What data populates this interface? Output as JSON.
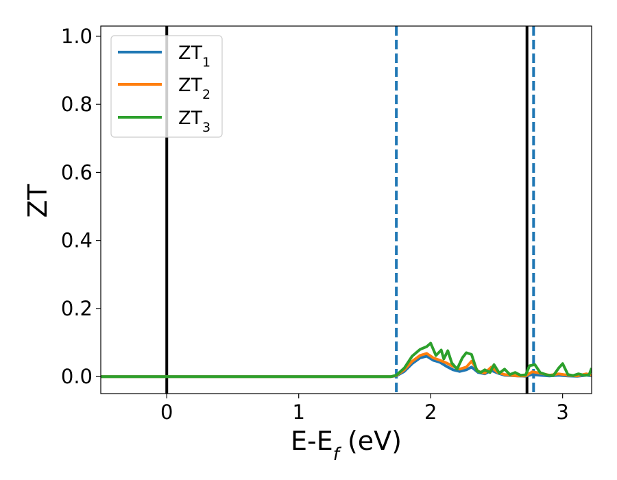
{
  "chart_data": {
    "type": "line",
    "xlabel_main": "E-E",
    "xlabel_sub": "f",
    "xlabel_unit": " (eV)",
    "ylabel": "ZT",
    "xlim": [
      -0.5,
      3.22
    ],
    "ylim": [
      -0.05,
      1.03
    ],
    "xticks": [
      0,
      1,
      2,
      3
    ],
    "xtick_labels": [
      "0",
      "1",
      "2",
      "3"
    ],
    "yticks": [
      0.0,
      0.2,
      0.4,
      0.6,
      0.8,
      1.0
    ],
    "ytick_labels": [
      "0.0",
      "0.2",
      "0.4",
      "0.6",
      "0.8",
      "1.0"
    ],
    "grid": false,
    "legend_position": "top-left",
    "series": [
      {
        "name": "ZT",
        "sub": "1",
        "color": "#1f77b4",
        "x": [
          -0.5,
          1.7,
          1.74,
          1.8,
          1.86,
          1.92,
          1.97,
          2.02,
          2.07,
          2.12,
          2.17,
          2.22,
          2.27,
          2.31,
          2.36,
          2.41,
          2.46,
          2.51,
          2.56,
          2.61,
          2.66,
          2.72,
          2.77,
          2.83,
          2.9,
          2.97,
          3.04,
          3.11,
          3.18,
          3.22
        ],
        "y": [
          0.0,
          0.0,
          0.002,
          0.015,
          0.038,
          0.055,
          0.06,
          0.048,
          0.042,
          0.03,
          0.02,
          0.015,
          0.02,
          0.028,
          0.012,
          0.008,
          0.018,
          0.01,
          0.004,
          0.003,
          0.002,
          0.001,
          0.006,
          0.004,
          0.002,
          0.004,
          0.002,
          0.001,
          0.004,
          0.002
        ]
      },
      {
        "name": "ZT",
        "sub": "2",
        "color": "#ff7f0e",
        "x": [
          -0.5,
          1.7,
          1.74,
          1.8,
          1.86,
          1.92,
          1.97,
          2.02,
          2.07,
          2.12,
          2.17,
          2.22,
          2.27,
          2.31,
          2.36,
          2.41,
          2.46,
          2.51,
          2.56,
          2.61,
          2.66,
          2.72,
          2.77,
          2.83,
          2.9,
          2.97,
          3.04,
          3.11,
          3.18,
          3.22
        ],
        "y": [
          0.0,
          0.0,
          0.003,
          0.02,
          0.045,
          0.062,
          0.068,
          0.055,
          0.048,
          0.04,
          0.03,
          0.022,
          0.028,
          0.045,
          0.015,
          0.01,
          0.028,
          0.012,
          0.006,
          0.004,
          0.002,
          0.002,
          0.014,
          0.01,
          0.004,
          0.008,
          0.004,
          0.002,
          0.008,
          0.004
        ]
      },
      {
        "name": "ZT",
        "sub": "3",
        "color": "#2ca02c",
        "x": [
          -0.5,
          1.7,
          1.74,
          1.8,
          1.86,
          1.92,
          1.97,
          2.0,
          2.04,
          2.08,
          2.1,
          2.13,
          2.16,
          2.2,
          2.24,
          2.27,
          2.31,
          2.35,
          2.38,
          2.41,
          2.45,
          2.48,
          2.52,
          2.56,
          2.6,
          2.64,
          2.68,
          2.72,
          2.75,
          2.79,
          2.83,
          2.88,
          2.93,
          2.97,
          3.0,
          3.04,
          3.08,
          3.12,
          3.16,
          3.2,
          3.22
        ],
        "y": [
          0.0,
          0.0,
          0.004,
          0.025,
          0.06,
          0.08,
          0.088,
          0.098,
          0.062,
          0.078,
          0.052,
          0.076,
          0.04,
          0.022,
          0.055,
          0.07,
          0.065,
          0.018,
          0.012,
          0.02,
          0.012,
          0.035,
          0.01,
          0.022,
          0.006,
          0.012,
          0.004,
          0.005,
          0.032,
          0.035,
          0.012,
          0.005,
          0.003,
          0.025,
          0.038,
          0.006,
          0.003,
          0.008,
          0.004,
          0.005,
          0.025
        ]
      }
    ],
    "vlines": [
      {
        "x": 0.0,
        "style": "solid",
        "color": "#000000"
      },
      {
        "x": 1.74,
        "style": "dashed",
        "color": "#1f77b4"
      },
      {
        "x": 2.73,
        "style": "solid",
        "color": "#000000"
      },
      {
        "x": 2.78,
        "style": "dashed",
        "color": "#1f77b4"
      }
    ]
  }
}
